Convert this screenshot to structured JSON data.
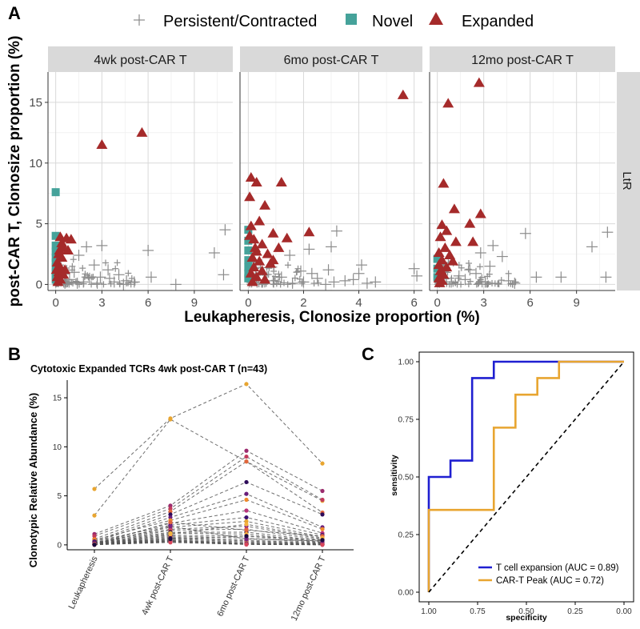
{
  "panel_labels": {
    "a": "A",
    "b": "B",
    "c": "C"
  },
  "colors": {
    "persistent": "#8c8c8c",
    "novel": "#45a29a",
    "expanded": "#a52a2a",
    "tcell": "#1f1fd1",
    "cart": "#e8a530"
  },
  "chart_data": [
    {
      "type": "scatter",
      "id": "A",
      "legend": [
        {
          "label": "Persistent/Contracted",
          "marker": "cross"
        },
        {
          "label": "Novel",
          "marker": "square"
        },
        {
          "label": "Expanded",
          "marker": "triangle"
        }
      ],
      "xlabel": "Leukapheresis, Clonosize proportion (%)",
      "ylabel": "post-CAR T, Clonosize proportion (%)",
      "row_label": "LtR",
      "ylim": [
        -0.5,
        17.5
      ],
      "yticks": [
        0,
        5,
        10,
        15
      ],
      "facets": [
        {
          "title": "4wk post-CAR T",
          "xlim": [
            -0.5,
            11.5
          ],
          "xticks": [
            0,
            3,
            6,
            9
          ],
          "expanded": [
            [
              3.0,
              11.5
            ],
            [
              5.6,
              12.5
            ],
            [
              0.3,
              3.9
            ],
            [
              0.7,
              3.8
            ],
            [
              1.0,
              3.7
            ],
            [
              0.5,
              3.0
            ],
            [
              0.2,
              2.5
            ],
            [
              0.4,
              2.2
            ],
            [
              0.1,
              1.8
            ],
            [
              0.3,
              1.4
            ],
            [
              0.6,
              1.2
            ],
            [
              0.2,
              1.0
            ],
            [
              0.5,
              0.8
            ],
            [
              0.1,
              0.6
            ],
            [
              0.3,
              0.4
            ],
            [
              0.15,
              0.2
            ],
            [
              0.8,
              2.8
            ],
            [
              0.4,
              3.4
            ],
            [
              0.05,
              1.2
            ],
            [
              0.25,
              2.8
            ]
          ],
          "novel": [
            [
              0,
              7.6
            ],
            [
              0,
              4.0
            ],
            [
              0,
              3.2
            ],
            [
              0,
              2.7
            ],
            [
              0,
              2.2
            ],
            [
              0,
              1.8
            ],
            [
              0,
              1.4
            ],
            [
              0,
              1.0
            ],
            [
              0,
              0.7
            ],
            [
              0,
              0.4
            ]
          ],
          "persistent": [
            [
              11.0,
              4.5
            ],
            [
              10.3,
              2.6
            ],
            [
              3.0,
              3.2
            ],
            [
              2.0,
              3.1
            ],
            [
              1.5,
              2.4
            ],
            [
              3.4,
              1.2
            ],
            [
              4.1,
              0.8
            ],
            [
              6.0,
              2.8
            ],
            [
              6.2,
              0.6
            ],
            [
              7.8,
              0.0
            ],
            [
              10.9,
              0.8
            ],
            [
              4.6,
              0.3
            ],
            [
              2.5,
              1.6
            ],
            [
              1.2,
              1.0
            ],
            [
              2.2,
              0.5
            ],
            [
              3.8,
              0.2
            ],
            [
              5.1,
              0.2
            ],
            [
              1.8,
              0.2
            ],
            [
              0.9,
              0.4
            ],
            [
              2.9,
              0.6
            ],
            [
              1.4,
              0.1
            ],
            [
              3.5,
              0.5
            ],
            [
              0.6,
              0.1
            ],
            [
              2.7,
              0.1
            ],
            [
              4.4,
              0.0
            ]
          ]
        },
        {
          "title": "6mo post-CAR T",
          "xlim": [
            -0.3,
            6.3
          ],
          "xticks": [
            0,
            2,
            4,
            6
          ],
          "expanded": [
            [
              5.6,
              15.6
            ],
            [
              0.1,
              8.8
            ],
            [
              0.3,
              8.4
            ],
            [
              0.05,
              7.2
            ],
            [
              1.2,
              8.4
            ],
            [
              0.6,
              6.5
            ],
            [
              0.4,
              5.2
            ],
            [
              0.1,
              4.8
            ],
            [
              2.2,
              4.3
            ],
            [
              0.9,
              4.2
            ],
            [
              0.2,
              3.7
            ],
            [
              0.5,
              3.3
            ],
            [
              1.1,
              3.0
            ],
            [
              0.3,
              2.7
            ],
            [
              0.7,
              2.5
            ],
            [
              0.15,
              2.2
            ],
            [
              0.4,
              1.9
            ],
            [
              0.8,
              1.7
            ],
            [
              0.2,
              1.4
            ],
            [
              0.5,
              1.1
            ],
            [
              0.1,
              0.9
            ],
            [
              0.3,
              0.6
            ],
            [
              0.6,
              0.4
            ],
            [
              0.15,
              0.2
            ],
            [
              1.4,
              3.8
            ],
            [
              0.9,
              2.0
            ],
            [
              0.25,
              3.0
            ],
            [
              0.05,
              4.0
            ]
          ],
          "novel": [
            [
              0,
              4.5
            ],
            [
              0,
              3.6
            ],
            [
              0,
              2.8
            ],
            [
              0,
              2.0
            ],
            [
              0,
              1.4
            ],
            [
              0,
              0.9
            ],
            [
              0,
              0.5
            ]
          ],
          "persistent": [
            [
              3.2,
              4.4
            ],
            [
              3.0,
              3.1
            ],
            [
              4.1,
              1.6
            ],
            [
              4.0,
              0.9
            ],
            [
              6.0,
              1.3
            ],
            [
              6.1,
              0.7
            ],
            [
              2.2,
              2.9
            ],
            [
              1.5,
              2.4
            ],
            [
              2.9,
              1.2
            ],
            [
              2.5,
              0.5
            ],
            [
              3.5,
              0.3
            ],
            [
              3.1,
              0.2
            ],
            [
              4.6,
              0.2
            ],
            [
              1.9,
              1.1
            ],
            [
              1.2,
              0.6
            ],
            [
              2.0,
              0.2
            ],
            [
              0.9,
              0.3
            ],
            [
              2.8,
              0.0
            ],
            [
              1.6,
              0.1
            ],
            [
              3.8,
              0.4
            ],
            [
              2.3,
              0.9
            ],
            [
              4.3,
              0.1
            ]
          ]
        },
        {
          "title": "12mo post-CAR T",
          "xlim": [
            -0.5,
            11.5
          ],
          "xticks": [
            0,
            3,
            6,
            9
          ],
          "expanded": [
            [
              2.7,
              16.6
            ],
            [
              0.7,
              14.9
            ],
            [
              0.4,
              8.3
            ],
            [
              1.1,
              6.2
            ],
            [
              2.8,
              5.8
            ],
            [
              0.3,
              4.9
            ],
            [
              0.6,
              4.4
            ],
            [
              1.2,
              3.5
            ],
            [
              2.3,
              3.5
            ],
            [
              2.1,
              5.0
            ],
            [
              0.2,
              3.9
            ],
            [
              0.5,
              3.0
            ],
            [
              0.1,
              2.6
            ],
            [
              0.8,
              2.4
            ],
            [
              0.3,
              2.0
            ],
            [
              0.1,
              1.6
            ],
            [
              0.6,
              1.4
            ],
            [
              0.2,
              1.1
            ],
            [
              0.4,
              0.8
            ],
            [
              0.1,
              0.5
            ],
            [
              0.3,
              0.3
            ],
            [
              0.15,
              0.1
            ],
            [
              1.0,
              1.9
            ]
          ],
          "novel": [
            [
              0,
              2.1
            ],
            [
              0,
              1.3
            ],
            [
              0,
              0.6
            ]
          ],
          "persistent": [
            [
              11.0,
              4.3
            ],
            [
              10.0,
              3.1
            ],
            [
              5.7,
              4.2
            ],
            [
              3.6,
              3.2
            ],
            [
              4.2,
              2.3
            ],
            [
              2.8,
              2.6
            ],
            [
              6.4,
              0.6
            ],
            [
              8.0,
              0.6
            ],
            [
              10.9,
              0.6
            ],
            [
              3.4,
              1.5
            ],
            [
              2.5,
              0.9
            ],
            [
              4.6,
              0.3
            ],
            [
              1.8,
              0.4
            ],
            [
              3.1,
              0.2
            ],
            [
              2.1,
              1.2
            ],
            [
              1.4,
              0.7
            ],
            [
              5.0,
              0.1
            ],
            [
              0.9,
              0.2
            ]
          ]
        }
      ]
    },
    {
      "type": "line",
      "id": "B",
      "title": "Cytotoxic Expanded TCRs 4wk post-CAR T (n=43)",
      "ylabel": "Clonotypic Relative Abundance (%)",
      "categories": [
        "Leukapheresis",
        "4wk post-CAR T",
        "6mo post-CAR T",
        "12mo post-CAR T"
      ],
      "ylim": [
        -0.5,
        16.8
      ],
      "yticks": [
        0,
        5,
        10,
        15
      ],
      "series": [
        {
          "values": [
            5.7,
            12.9,
            16.4,
            8.3
          ],
          "color": "#e8a530"
        },
        {
          "values": [
            3.0,
            12.8,
            8.5,
            4.5
          ],
          "color": "#e8a530"
        },
        {
          "values": [
            1.1,
            4.0,
            9.6,
            5.5
          ],
          "color": "#9b2b6e"
        },
        {
          "values": [
            0.9,
            3.7,
            9.0,
            4.6
          ],
          "color": "#c23a5c"
        },
        {
          "values": [
            0.6,
            3.4,
            8.5,
            3.3
          ],
          "color": "#e0653c"
        },
        {
          "values": [
            0.4,
            3.1,
            6.4,
            3.1
          ],
          "color": "#2d0b5a"
        },
        {
          "values": [
            0.3,
            2.8,
            5.2,
            1.8
          ],
          "color": "#6a1d7a"
        },
        {
          "values": [
            0.5,
            2.5,
            4.6,
            1.6
          ],
          "color": "#f08a2c"
        },
        {
          "values": [
            0.2,
            2.2,
            3.5,
            1.2
          ],
          "color": "#b8327a"
        },
        {
          "values": [
            0.35,
            2.0,
            2.8,
            1.0
          ],
          "color": "#3b0f70"
        },
        {
          "values": [
            0.15,
            1.8,
            2.4,
            0.8
          ],
          "color": "#e8a530"
        },
        {
          "values": [
            0.25,
            1.6,
            1.9,
            0.6
          ],
          "color": "#7a2180"
        },
        {
          "values": [
            0.1,
            1.5,
            1.6,
            0.5
          ],
          "color": "#d9465a"
        },
        {
          "values": [
            0.2,
            1.3,
            1.3,
            0.4
          ],
          "color": "#1a0a3e"
        },
        {
          "values": [
            0.1,
            1.2,
            1.1,
            0.3
          ],
          "color": "#f4b13f"
        },
        {
          "values": [
            0.15,
            1.0,
            0.9,
            0.25
          ],
          "color": "#a82c6c"
        },
        {
          "values": [
            0.05,
            0.9,
            0.7,
            0.2
          ],
          "color": "#53137e"
        },
        {
          "values": [
            0.1,
            0.8,
            0.5,
            0.15
          ],
          "color": "#ec7438"
        },
        {
          "values": [
            0.05,
            0.7,
            0.4,
            0.1
          ],
          "color": "#2d0b5a"
        },
        {
          "values": [
            0.08,
            0.6,
            0.3,
            0.1
          ],
          "color": "#c23a5c"
        },
        {
          "values": [
            0.03,
            0.5,
            0.2,
            0.05
          ],
          "color": "#e8a530"
        },
        {
          "values": [
            0.05,
            0.45,
            0.15,
            0.05
          ],
          "color": "#6a1d7a"
        },
        {
          "values": [
            0.02,
            0.4,
            0.1,
            0.03
          ],
          "color": "#f08a2c"
        },
        {
          "values": [
            0.04,
            0.35,
            0.08,
            0.02
          ],
          "color": "#3b0f70"
        },
        {
          "values": [
            0.02,
            0.3,
            0.05,
            0.02
          ],
          "color": "#b8327a"
        },
        {
          "values": [
            0.01,
            0.25,
            0.04,
            0.01
          ],
          "color": "#d9465a"
        },
        {
          "values": [
            0.03,
            2.3,
            1.5,
            0.9
          ],
          "color": "#e0653c"
        },
        {
          "values": [
            0.06,
            1.9,
            0.6,
            0.4
          ],
          "color": "#7a2180"
        },
        {
          "values": [
            0.02,
            1.1,
            2.1,
            0.7
          ],
          "color": "#f4b13f"
        },
        {
          "values": [
            0.01,
            0.6,
            0.9,
            0.5
          ],
          "color": "#1a0a3e"
        }
      ]
    },
    {
      "type": "line",
      "id": "C",
      "xlabel": "specificity",
      "ylabel": "sensitivity",
      "xlim": [
        1.0,
        0.0
      ],
      "ylim": [
        0.0,
        1.0
      ],
      "xticks": [
        "1.00",
        "0.75",
        "0.50",
        "0.25",
        "0.00"
      ],
      "yticks": [
        "0.00",
        "0.25",
        "0.50",
        "0.75",
        "1.00"
      ],
      "series": [
        {
          "name": "T cell expansion (AUC = 0.89)",
          "color": "#1f1fd1",
          "points": [
            [
              1.0,
              0.0
            ],
            [
              1.0,
              0.5
            ],
            [
              0.889,
              0.5
            ],
            [
              0.889,
              0.571
            ],
            [
              0.778,
              0.571
            ],
            [
              0.778,
              0.929
            ],
            [
              0.667,
              0.929
            ],
            [
              0.667,
              1.0
            ],
            [
              0.0,
              1.0
            ]
          ]
        },
        {
          "name": "CAR-T Peak (AUC = 0.72)",
          "color": "#e8a530",
          "points": [
            [
              1.0,
              0.0
            ],
            [
              1.0,
              0.357
            ],
            [
              0.667,
              0.357
            ],
            [
              0.667,
              0.714
            ],
            [
              0.556,
              0.714
            ],
            [
              0.556,
              0.857
            ],
            [
              0.444,
              0.857
            ],
            [
              0.444,
              0.929
            ],
            [
              0.333,
              0.929
            ],
            [
              0.333,
              1.0
            ],
            [
              0.222,
              1.0
            ],
            [
              0.0,
              1.0
            ]
          ]
        },
        {
          "name": "reference",
          "color": "#000000",
          "dashed": true,
          "points": [
            [
              1.0,
              0.0
            ],
            [
              0.0,
              1.0
            ]
          ]
        }
      ]
    }
  ]
}
